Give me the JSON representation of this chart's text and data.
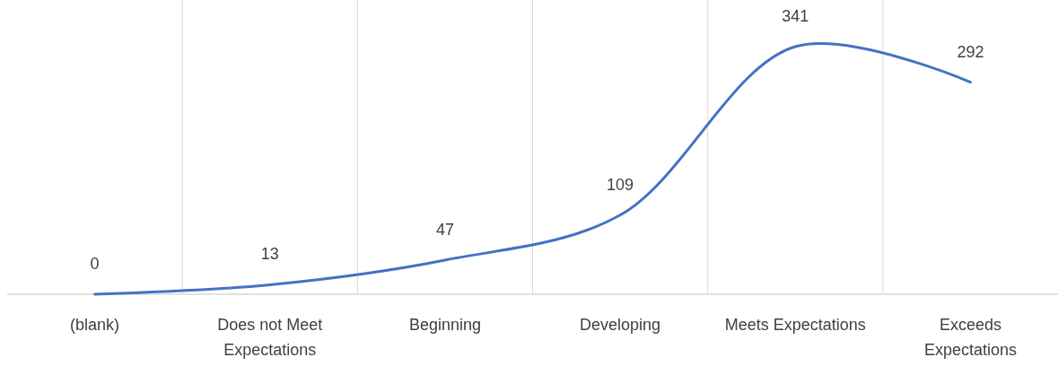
{
  "chart_data": {
    "type": "line",
    "categories": [
      "(blank)",
      "Does not Meet Expectations",
      "Beginning",
      "Developing",
      "Meets Expectations",
      "Exceeds Expectations"
    ],
    "series": [
      {
        "color": "#4472c4",
        "values": [
          0,
          13,
          47,
          109,
          341,
          292
        ]
      }
    ],
    "grid": "x",
    "data_labels": true,
    "marker": "none",
    "line_style": "solid"
  }
}
